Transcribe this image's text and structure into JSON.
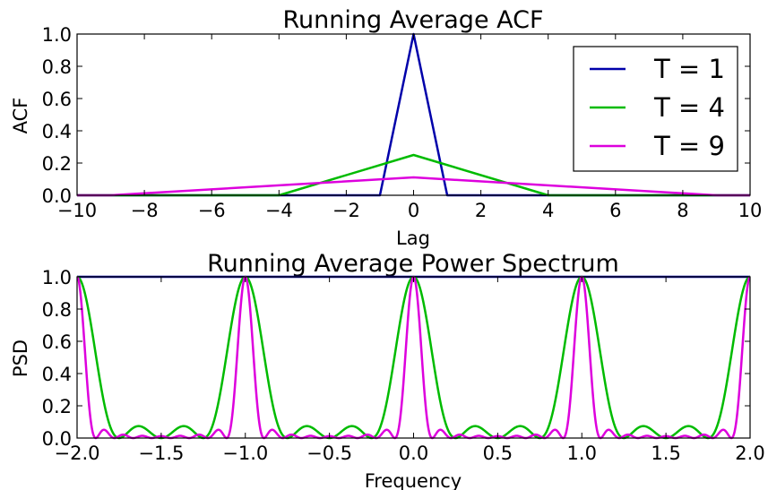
{
  "chart_data": [
    {
      "type": "line",
      "title": "Running Average ACF",
      "xlabel": "Lag",
      "ylabel": "ACF",
      "xlim": [
        -10,
        10
      ],
      "ylim": [
        0,
        1
      ],
      "xticks": [
        -10,
        -8,
        -6,
        -4,
        -2,
        0,
        2,
        4,
        6,
        8,
        10
      ],
      "yticks": [
        0.0,
        0.2,
        0.4,
        0.6,
        0.8,
        1.0
      ],
      "xtick_labels": [
        "−10",
        "−8",
        "−6",
        "−4",
        "−2",
        "0",
        "2",
        "4",
        "6",
        "8",
        "10"
      ],
      "ytick_labels": [
        "0.0",
        "0.2",
        "0.4",
        "0.6",
        "0.8",
        "1.0"
      ],
      "grid": false,
      "legend": {
        "position": "top-right",
        "entries": [
          "T = 1",
          "T = 4",
          "T = 9"
        ]
      },
      "series": [
        {
          "name": "T = 1",
          "color": "#0000aa",
          "x": [
            -10,
            -1,
            0,
            1,
            10
          ],
          "y": [
            0,
            0,
            1,
            0,
            0
          ]
        },
        {
          "name": "T = 4",
          "color": "#00bb00",
          "x": [
            -10,
            -4,
            0,
            4,
            10
          ],
          "y": [
            0,
            0,
            0.25,
            0,
            0
          ]
        },
        {
          "name": "T = 9",
          "color": "#dd00dd",
          "x": [
            -10,
            -9,
            0,
            9,
            10
          ],
          "y": [
            0,
            0,
            0.111,
            0,
            0
          ]
        }
      ]
    },
    {
      "type": "line",
      "title": "Running Average Power Spectrum",
      "xlabel": "Frequency",
      "ylabel": "PSD",
      "xlim": [
        -2,
        2
      ],
      "ylim": [
        0,
        1
      ],
      "xticks": [
        -2.0,
        -1.5,
        -1.0,
        -0.5,
        0.0,
        0.5,
        1.0,
        1.5,
        2.0
      ],
      "yticks": [
        0.0,
        0.2,
        0.4,
        0.6,
        0.8,
        1.0
      ],
      "xtick_labels": [
        "−2.0",
        "−1.5",
        "−1.0",
        "−0.5",
        "0.0",
        "0.5",
        "1.0",
        "1.5",
        "2.0"
      ],
      "ytick_labels": [
        "0.0",
        "0.2",
        "0.4",
        "0.6",
        "0.8",
        "1.0"
      ],
      "grid": false,
      "series": [
        {
          "name": "T = 1",
          "color": "#0000aa",
          "function": "sinc_squared",
          "T": 1
        },
        {
          "name": "T = 4",
          "color": "#00bb00",
          "function": "sinc_squared",
          "T": 4
        },
        {
          "name": "T = 9",
          "color": "#dd00dd",
          "function": "sinc_squared",
          "T": 9
        }
      ]
    }
  ]
}
